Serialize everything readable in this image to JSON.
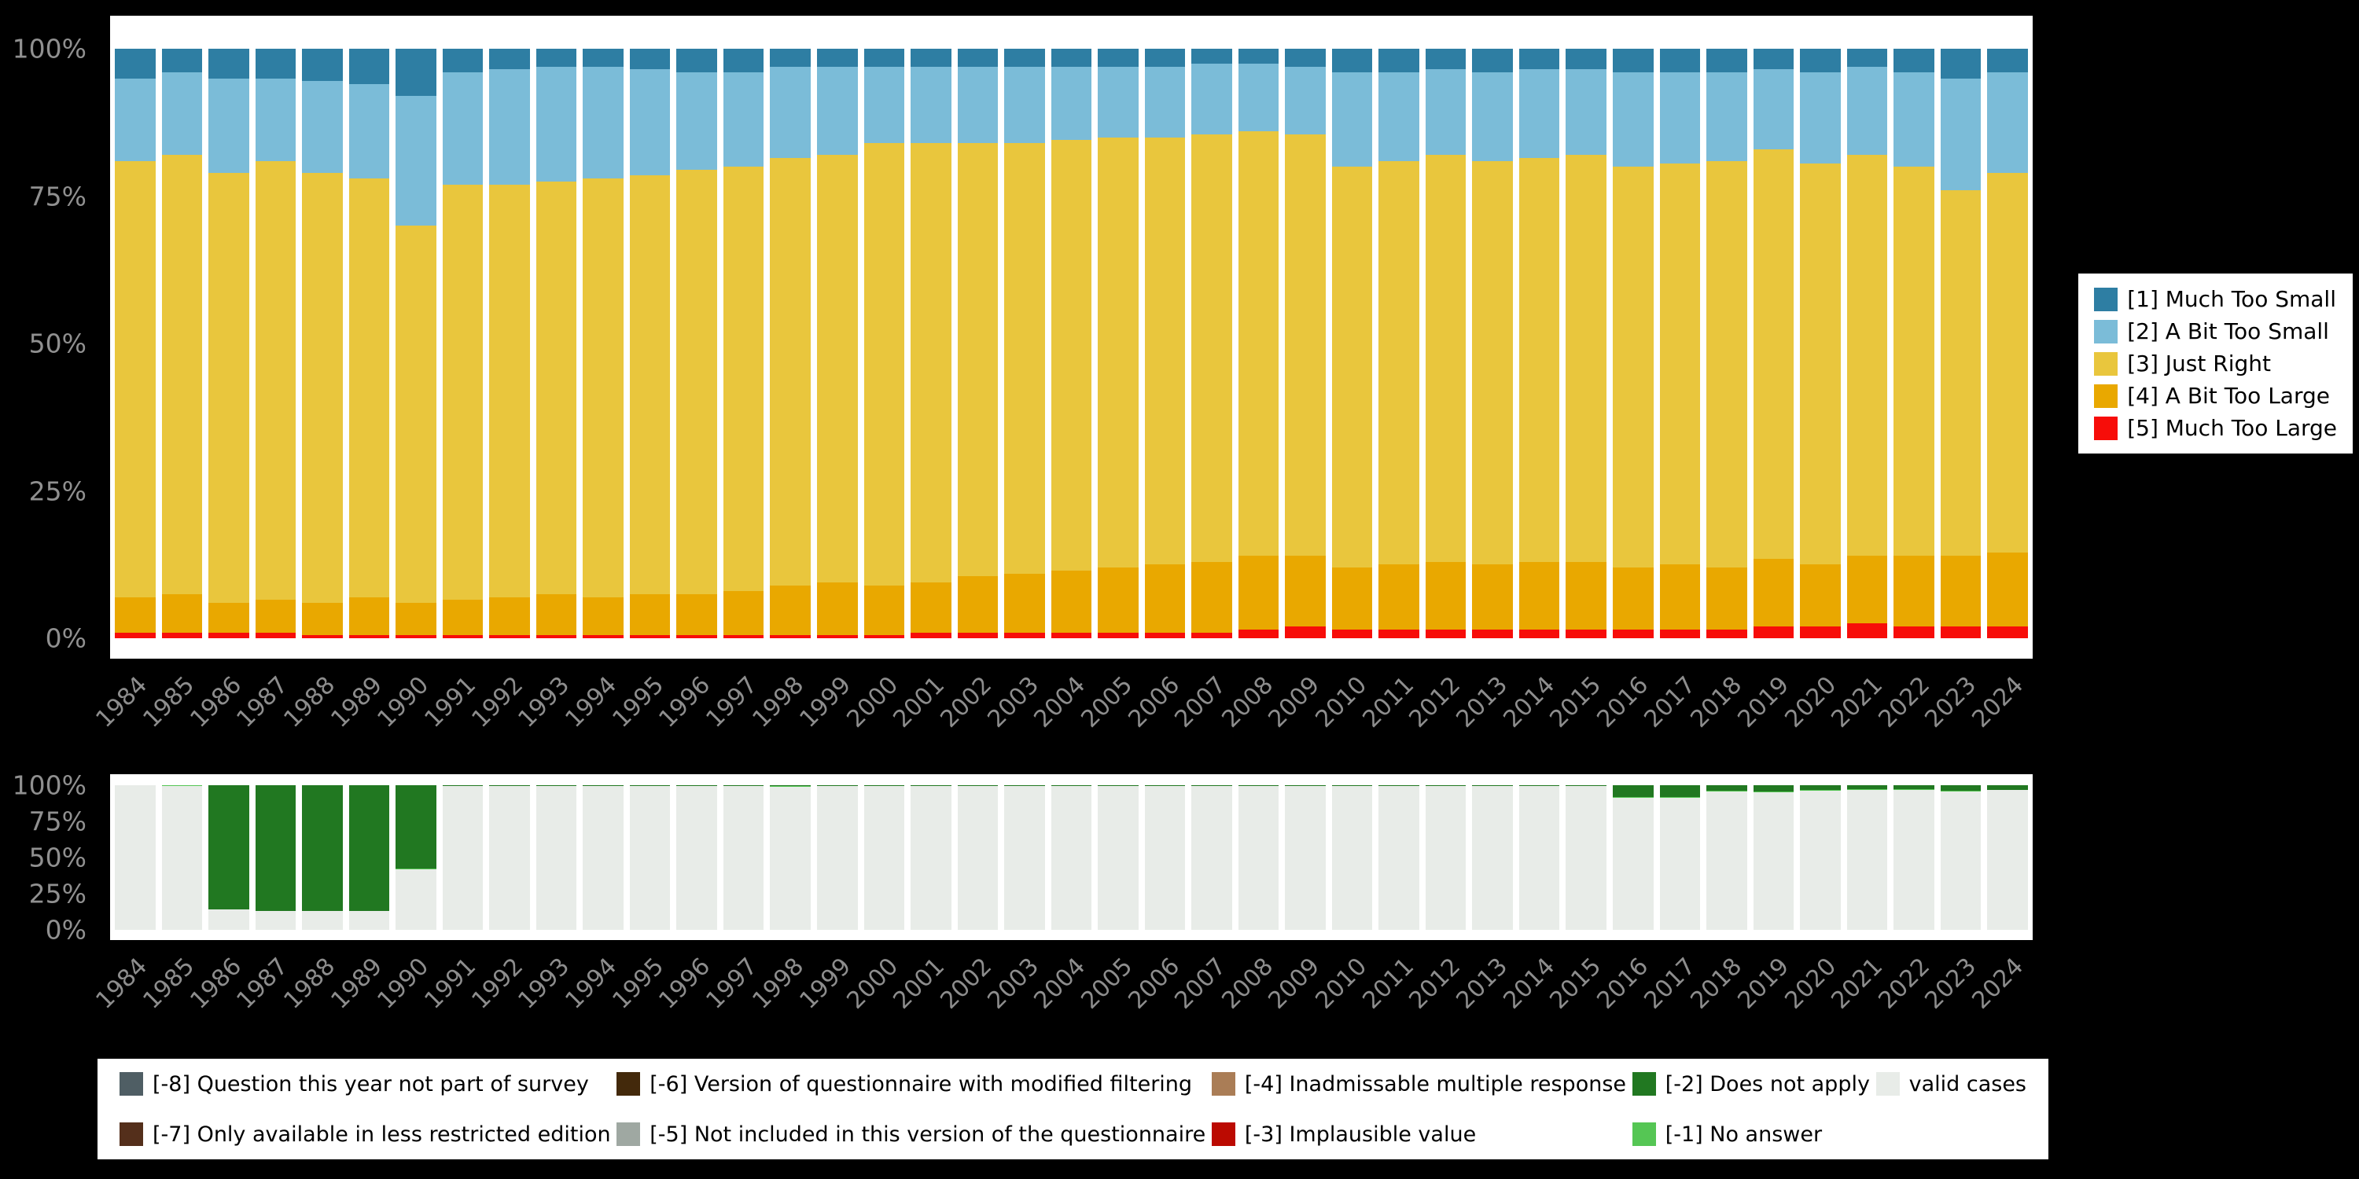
{
  "page": {
    "background": "#000000",
    "panel_background": "#ffffff",
    "axis_text_color": "#8d8d8d"
  },
  "years": [
    "1984",
    "1985",
    "1986",
    "1987",
    "1988",
    "1989",
    "1990",
    "1991",
    "1992",
    "1993",
    "1994",
    "1995",
    "1996",
    "1997",
    "1998",
    "1999",
    "2000",
    "2001",
    "2002",
    "2003",
    "2004",
    "2005",
    "2006",
    "2007",
    "2008",
    "2009",
    "2010",
    "2011",
    "2012",
    "2013",
    "2014",
    "2015",
    "2016",
    "2017",
    "2018",
    "2019",
    "2020",
    "2021",
    "2022",
    "2023",
    "2024"
  ],
  "chart_data": [
    {
      "type": "bar",
      "stacked": true,
      "title": "",
      "xlabel": "",
      "ylabel": "",
      "ylim": [
        0,
        100
      ],
      "grid": false,
      "legend_position": "right",
      "yticks": [
        "100%",
        "75%",
        "50%",
        "25%",
        "0%"
      ],
      "categories": [
        "1984",
        "1985",
        "1986",
        "1987",
        "1988",
        "1989",
        "1990",
        "1991",
        "1992",
        "1993",
        "1994",
        "1995",
        "1996",
        "1997",
        "1998",
        "1999",
        "2000",
        "2001",
        "2002",
        "2003",
        "2004",
        "2005",
        "2006",
        "2007",
        "2008",
        "2009",
        "2010",
        "2011",
        "2012",
        "2013",
        "2014",
        "2015",
        "2016",
        "2017",
        "2018",
        "2019",
        "2020",
        "2021",
        "2022",
        "2023",
        "2024"
      ],
      "series": [
        {
          "name": "[5] Much Too Large",
          "color": "#f70d09",
          "values": [
            1,
            1,
            1,
            1,
            0.5,
            0.5,
            0.5,
            0.5,
            0.5,
            0.5,
            0.5,
            0.5,
            0.5,
            0.5,
            0.5,
            0.5,
            0.5,
            1,
            1,
            1,
            1,
            1,
            1,
            1,
            1.5,
            2,
            1.5,
            1.5,
            1.5,
            1.5,
            1.5,
            1.5,
            1.5,
            1.5,
            1.5,
            2,
            2,
            2.5,
            2,
            2,
            2
          ]
        },
        {
          "name": "[4] A Bit Too Large",
          "color": "#e9a800",
          "values": [
            6,
            6.5,
            5,
            5.5,
            5.5,
            6.5,
            5.5,
            6,
            6.5,
            7,
            6.5,
            7,
            7,
            7.5,
            8.5,
            9,
            8.5,
            8.5,
            9.5,
            10,
            10.5,
            11,
            11.5,
            12,
            12.5,
            12,
            10.5,
            11,
            11.5,
            11,
            11.5,
            11.5,
            10.5,
            11,
            10.5,
            11.5,
            10.5,
            11.5,
            12,
            12,
            12.5
          ]
        },
        {
          "name": "[3] Just Right",
          "color": "#e9c63d",
          "values": [
            74,
            74.5,
            73,
            74.5,
            73,
            71,
            64,
            70.5,
            70,
            70,
            71,
            71,
            72,
            72,
            72.5,
            72.5,
            75,
            74.5,
            73.5,
            73,
            73,
            73,
            72.5,
            72.5,
            72,
            71.5,
            68,
            68.5,
            69,
            68.5,
            68.5,
            69,
            68,
            68,
            69,
            69.5,
            68,
            68,
            66,
            62,
            64.5
          ]
        },
        {
          "name": "[2] A Bit Too Small",
          "color": "#7bbcd8",
          "values": [
            14,
            14,
            16,
            14,
            15.5,
            16,
            22,
            19,
            19.5,
            19.5,
            19,
            18,
            16.5,
            16,
            15.5,
            15,
            13,
            13,
            13,
            13,
            12.5,
            12,
            12,
            12,
            11.5,
            11.5,
            16,
            15,
            14.5,
            15,
            15,
            14.5,
            16,
            15.5,
            15,
            13.5,
            15.5,
            15,
            16,
            19,
            17
          ]
        },
        {
          "name": "[1] Much Too Small",
          "color": "#2e7ea3",
          "values": [
            5,
            4,
            5,
            5,
            5.5,
            6,
            8,
            4,
            3.5,
            3,
            3,
            3.5,
            4,
            4,
            3,
            3,
            3,
            3,
            3,
            3,
            3,
            3,
            3,
            2.5,
            2.5,
            3,
            4,
            4,
            3.5,
            4,
            3.5,
            3.5,
            4,
            4,
            4,
            3.5,
            4,
            3,
            4,
            5,
            4
          ]
        }
      ],
      "legend": [
        {
          "label": "[1] Much Too Small",
          "color": "#2e7ea3"
        },
        {
          "label": "[2] A Bit Too Small",
          "color": "#7bbcd8"
        },
        {
          "label": "[3] Just Right",
          "color": "#e9c63d"
        },
        {
          "label": "[4] A Bit Too Large",
          "color": "#e9a800"
        },
        {
          "label": "[5] Much Too Large",
          "color": "#f70d09"
        }
      ]
    },
    {
      "type": "bar",
      "stacked": true,
      "title": "",
      "xlabel": "",
      "ylabel": "",
      "ylim": [
        0,
        100
      ],
      "grid": false,
      "yticks": [
        "100%",
        "75%",
        "50%",
        "25%",
        "0%"
      ],
      "categories": [
        "1984",
        "1985",
        "1986",
        "1987",
        "1988",
        "1989",
        "1990",
        "1991",
        "1992",
        "1993",
        "1994",
        "1995",
        "1996",
        "1997",
        "1998",
        "1999",
        "2000",
        "2001",
        "2002",
        "2003",
        "2004",
        "2005",
        "2006",
        "2007",
        "2008",
        "2009",
        "2010",
        "2011",
        "2012",
        "2013",
        "2014",
        "2015",
        "2016",
        "2017",
        "2018",
        "2019",
        "2020",
        "2021",
        "2022",
        "2023",
        "2024"
      ],
      "series": [
        {
          "name": "valid cases",
          "color": "#e8ece8",
          "values": [
            100,
            99.7,
            14,
            13,
            13,
            13,
            42,
            99.4,
            99.4,
            99.4,
            99.4,
            99.4,
            99.4,
            99.4,
            99,
            99.4,
            99.4,
            99.4,
            99.4,
            99.4,
            99.2,
            99.4,
            99.4,
            99.4,
            99.2,
            99.4,
            99.4,
            99.4,
            99.4,
            99.4,
            99.4,
            99.4,
            91.5,
            91.5,
            95.5,
            95,
            96,
            97,
            97,
            95.5,
            96.5
          ]
        },
        {
          "name": "[-1] No answer",
          "color": "#55c654",
          "values": [
            0,
            0.3,
            0.3,
            0.3,
            0.3,
            0.3,
            0.3,
            0.3,
            0.3,
            0.3,
            0.3,
            0.3,
            0.3,
            0.3,
            0.7,
            0.3,
            0.3,
            0.3,
            0.3,
            0.3,
            0.5,
            0.3,
            0.3,
            0.3,
            0.5,
            0.3,
            0.3,
            0.3,
            0.3,
            0.3,
            0.3,
            0.3,
            0.5,
            0.5,
            0.5,
            0.5,
            0.5,
            0.5,
            0.5,
            0.5,
            0.5
          ]
        },
        {
          "name": "[-2] Does not apply",
          "color": "#217821",
          "values": [
            0,
            0,
            85.7,
            86.7,
            86.7,
            86.7,
            57.7,
            0.3,
            0.3,
            0.3,
            0.3,
            0.3,
            0.3,
            0.3,
            0.3,
            0.3,
            0.3,
            0.3,
            0.3,
            0.3,
            0.3,
            0.3,
            0.3,
            0.3,
            0.3,
            0.3,
            0.3,
            0.3,
            0.3,
            0.3,
            0.3,
            0.3,
            8,
            8,
            4,
            4.5,
            3.5,
            2.5,
            2.5,
            4,
            3
          ]
        }
      ]
    }
  ],
  "missing_legend": {
    "items": [
      {
        "label": "[-8] Question this year not part of survey",
        "color": "#4f5e64"
      },
      {
        "label": "[-7] Only available in less restricted edition",
        "color": "#542f1b"
      },
      {
        "label": "[-6] Version of questionnaire with modified filtering",
        "color": "#43290b"
      },
      {
        "label": "[-5] Not included in this version of the questionnaire",
        "color": "#9fa8a2"
      },
      {
        "label": "[-4] Inadmissable multiple response",
        "color": "#aa7d56"
      },
      {
        "label": "[-3] Implausible value",
        "color": "#bb0a01"
      },
      {
        "label": "[-2] Does not apply",
        "color": "#217821"
      },
      {
        "label": "[-1] No answer",
        "color": "#55c654"
      },
      {
        "label": "valid cases",
        "color": "#e8ece8"
      }
    ]
  }
}
